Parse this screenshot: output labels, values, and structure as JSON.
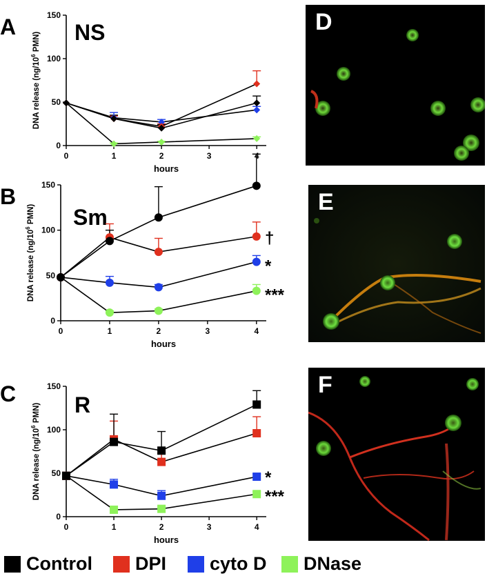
{
  "colors": {
    "control": "#000000",
    "dpi": "#e0301e",
    "cytoD": "#1f3fe8",
    "dnase": "#8ef25a"
  },
  "legend": [
    {
      "key": "control",
      "label": "Control"
    },
    {
      "key": "dpi",
      "label": "DPI"
    },
    {
      "key": "cytoD",
      "label": "cyto D"
    },
    {
      "key": "dnase",
      "label": "DNase"
    }
  ],
  "micrographs": [
    {
      "letter": "D"
    },
    {
      "letter": "E"
    },
    {
      "letter": "F"
    }
  ],
  "chart_data": [
    {
      "type": "line",
      "panel": "A",
      "title": "NS",
      "marker": "diamond",
      "xlabel": "hours",
      "ylabel_main": "DNA release (ng/10",
      "ylabel_sup": "6",
      "ylabel_end": " PMN)",
      "xlim": [
        0,
        4.2
      ],
      "ylim": [
        0,
        150
      ],
      "xticks": [
        0,
        1,
        2,
        3,
        4
      ],
      "yticks": [
        0,
        50,
        100,
        150
      ],
      "x": [
        0,
        1,
        2,
        4
      ],
      "series": [
        {
          "key": "control",
          "values": [
            49,
            31,
            20,
            49
          ],
          "err": [
            0,
            4,
            4,
            8
          ]
        },
        {
          "key": "dpi",
          "values": [
            49,
            31,
            22,
            71
          ],
          "err": [
            0,
            3,
            3,
            15
          ]
        },
        {
          "key": "cytoD",
          "values": [
            49,
            32,
            27,
            41
          ],
          "err": [
            0,
            6,
            3,
            4
          ]
        },
        {
          "key": "dnase",
          "values": [
            49,
            2,
            4,
            8
          ],
          "err": [
            0,
            1,
            1,
            2
          ]
        }
      ],
      "annotations": []
    },
    {
      "type": "line",
      "panel": "B",
      "title": "Sm",
      "marker": "circle",
      "xlabel": "hours",
      "ylabel_main": "DNA release (ng/10",
      "ylabel_sup": "6",
      "ylabel_end": " PMN)",
      "xlim": [
        0,
        4.2
      ],
      "ylim": [
        0,
        150
      ],
      "xticks": [
        0,
        1,
        2,
        3,
        4
      ],
      "yticks": [
        0,
        50,
        100,
        150
      ],
      "x": [
        0,
        1,
        2,
        4
      ],
      "series": [
        {
          "key": "control",
          "values": [
            48,
            88,
            114,
            149
          ],
          "err": [
            0,
            12,
            34,
            35
          ]
        },
        {
          "key": "dpi",
          "values": [
            48,
            92,
            76,
            93
          ],
          "err": [
            0,
            15,
            15,
            16
          ]
        },
        {
          "key": "cytoD",
          "values": [
            48,
            42,
            37,
            65
          ],
          "err": [
            0,
            7,
            3,
            7
          ]
        },
        {
          "key": "dnase",
          "values": [
            48,
            9,
            11,
            33
          ],
          "err": [
            0,
            2,
            2,
            7
          ]
        }
      ],
      "annotations": [
        {
          "text": "†",
          "y": 93
        },
        {
          "text": "*",
          "y": 62
        },
        {
          "text": "***",
          "y": 30
        }
      ]
    },
    {
      "type": "line",
      "panel": "C",
      "title": "R",
      "marker": "square",
      "xlabel": "hours",
      "ylabel_main": "DNA release (ng/10",
      "ylabel_sup": "6",
      "ylabel_end": " PMN)",
      "xlim": [
        0,
        4.2
      ],
      "ylim": [
        0,
        150
      ],
      "xticks": [
        0,
        1,
        2,
        3,
        4
      ],
      "yticks": [
        0,
        50,
        100,
        150
      ],
      "x": [
        0,
        1,
        2,
        4
      ],
      "series": [
        {
          "key": "control",
          "values": [
            47,
            86,
            76,
            129
          ],
          "err": [
            0,
            32,
            22,
            16
          ]
        },
        {
          "key": "dpi",
          "values": [
            47,
            89,
            63,
            96
          ],
          "err": [
            0,
            21,
            10,
            19
          ]
        },
        {
          "key": "cytoD",
          "values": [
            47,
            37,
            24,
            46
          ],
          "err": [
            0,
            6,
            6,
            3
          ]
        },
        {
          "key": "dnase",
          "values": [
            47,
            8,
            9,
            26
          ],
          "err": [
            0,
            2,
            2,
            3
          ]
        }
      ],
      "annotations": [
        {
          "text": "*",
          "y": 47
        },
        {
          "text": "***",
          "y": 25
        }
      ]
    }
  ]
}
